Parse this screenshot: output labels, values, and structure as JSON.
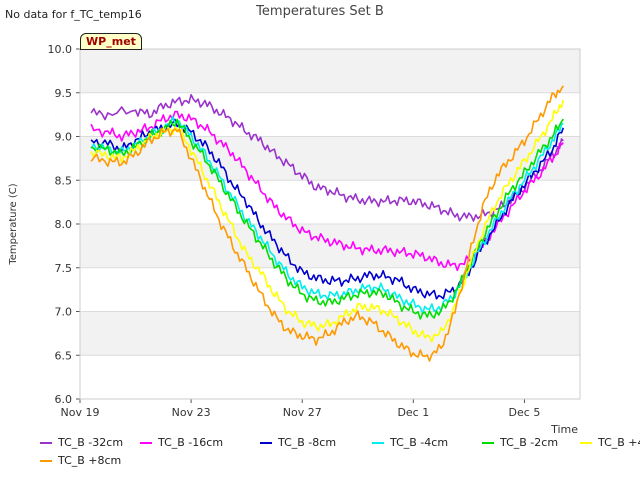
{
  "header": {
    "no_data_text": "No data for f_TC_temp16",
    "badge": "WP_met"
  },
  "chart_data": {
    "type": "line",
    "title": "Temperatures Set B",
    "xlabel": "Time",
    "ylabel": "Temperature (C)",
    "ylim": [
      6.0,
      10.0
    ],
    "xlim": [
      0,
      18
    ],
    "yticks": [
      "6.0",
      "6.5",
      "7.0",
      "7.5",
      "8.0",
      "8.5",
      "9.0",
      "9.5",
      "10.0"
    ],
    "xticks": [
      {
        "x": 0,
        "label": "Nov 19"
      },
      {
        "x": 4,
        "label": "Nov 23"
      },
      {
        "x": 8,
        "label": "Nov 27"
      },
      {
        "x": 12,
        "label": "Dec 1"
      },
      {
        "x": 16,
        "label": "Dec 5"
      }
    ],
    "grid": true,
    "legend_position": "bottom",
    "series": [
      {
        "name": "TC_B -32cm",
        "color": "#9933cc",
        "points": [
          [
            0.4,
            9.27
          ],
          [
            1,
            9.25
          ],
          [
            2,
            9.3
          ],
          [
            2.5,
            9.25
          ],
          [
            3,
            9.35
          ],
          [
            3.5,
            9.4
          ],
          [
            4,
            9.42
          ],
          [
            4.5,
            9.38
          ],
          [
            5,
            9.28
          ],
          [
            5.5,
            9.18
          ],
          [
            6,
            9.05
          ],
          [
            6.5,
            8.95
          ],
          [
            7,
            8.8
          ],
          [
            7.5,
            8.68
          ],
          [
            8,
            8.55
          ],
          [
            8.5,
            8.42
          ],
          [
            9,
            8.38
          ],
          [
            9.5,
            8.32
          ],
          [
            10,
            8.28
          ],
          [
            10.5,
            8.26
          ],
          [
            11,
            8.26
          ],
          [
            11.5,
            8.27
          ],
          [
            12,
            8.26
          ],
          [
            12.5,
            8.22
          ],
          [
            13,
            8.17
          ],
          [
            13.5,
            8.1
          ],
          [
            14,
            8.08
          ],
          [
            14.5,
            8.1
          ],
          [
            15,
            8.16
          ],
          [
            15.5,
            8.28
          ],
          [
            16,
            8.42
          ],
          [
            16.5,
            8.6
          ],
          [
            17,
            8.78
          ],
          [
            17.4,
            8.95
          ]
        ]
      },
      {
        "name": "TC_B -16cm",
        "color": "#ff00ff",
        "points": [
          [
            0.4,
            9.08
          ],
          [
            1,
            9.05
          ],
          [
            1.5,
            9.0
          ],
          [
            2,
            9.05
          ],
          [
            2.5,
            9.1
          ],
          [
            3,
            9.2
          ],
          [
            3.5,
            9.25
          ],
          [
            4,
            9.2
          ],
          [
            4.5,
            9.1
          ],
          [
            5,
            8.95
          ],
          [
            5.5,
            8.8
          ],
          [
            6,
            8.6
          ],
          [
            6.5,
            8.4
          ],
          [
            7,
            8.2
          ],
          [
            7.5,
            8.05
          ],
          [
            8,
            7.92
          ],
          [
            8.5,
            7.85
          ],
          [
            9,
            7.8
          ],
          [
            9.5,
            7.76
          ],
          [
            10,
            7.72
          ],
          [
            10.5,
            7.7
          ],
          [
            11,
            7.7
          ],
          [
            11.5,
            7.68
          ],
          [
            12,
            7.66
          ],
          [
            12.5,
            7.62
          ],
          [
            13,
            7.55
          ],
          [
            13.5,
            7.52
          ],
          [
            14,
            7.58
          ],
          [
            14.5,
            7.75
          ],
          [
            15,
            7.98
          ],
          [
            15.5,
            8.18
          ],
          [
            16,
            8.38
          ],
          [
            16.5,
            8.55
          ],
          [
            17,
            8.75
          ],
          [
            17.4,
            8.93
          ]
        ]
      },
      {
        "name": "TC_B -8cm",
        "color": "#0000cc",
        "points": [
          [
            0.4,
            8.95
          ],
          [
            1,
            8.92
          ],
          [
            1.5,
            8.85
          ],
          [
            2,
            8.95
          ],
          [
            2.5,
            9.05
          ],
          [
            3,
            9.1
          ],
          [
            3.5,
            9.15
          ],
          [
            4,
            9.05
          ],
          [
            4.5,
            8.9
          ],
          [
            5,
            8.7
          ],
          [
            5.5,
            8.45
          ],
          [
            6,
            8.25
          ],
          [
            6.5,
            8.0
          ],
          [
            7,
            7.8
          ],
          [
            7.5,
            7.6
          ],
          [
            8,
            7.45
          ],
          [
            8.5,
            7.38
          ],
          [
            9,
            7.35
          ],
          [
            9.5,
            7.35
          ],
          [
            10,
            7.38
          ],
          [
            10.5,
            7.42
          ],
          [
            11,
            7.4
          ],
          [
            11.5,
            7.35
          ],
          [
            12,
            7.25
          ],
          [
            12.5,
            7.2
          ],
          [
            13,
            7.18
          ],
          [
            13.5,
            7.25
          ],
          [
            14,
            7.45
          ],
          [
            14.5,
            7.75
          ],
          [
            15,
            8.0
          ],
          [
            15.5,
            8.25
          ],
          [
            16,
            8.45
          ],
          [
            16.5,
            8.65
          ],
          [
            17,
            8.85
          ],
          [
            17.4,
            9.1
          ]
        ]
      },
      {
        "name": "TC_B -4cm",
        "color": "#00eeee",
        "points": [
          [
            0.4,
            8.9
          ],
          [
            1,
            8.85
          ],
          [
            1.5,
            8.82
          ],
          [
            2,
            8.9
          ],
          [
            2.5,
            9.0
          ],
          [
            3,
            9.1
          ],
          [
            3.5,
            9.2
          ],
          [
            4,
            9.0
          ],
          [
            4.5,
            8.8
          ],
          [
            5,
            8.55
          ],
          [
            5.5,
            8.3
          ],
          [
            6,
            8.05
          ],
          [
            6.5,
            7.85
          ],
          [
            7,
            7.62
          ],
          [
            7.5,
            7.42
          ],
          [
            8,
            7.28
          ],
          [
            8.5,
            7.2
          ],
          [
            9,
            7.18
          ],
          [
            9.5,
            7.2
          ],
          [
            10,
            7.25
          ],
          [
            10.5,
            7.28
          ],
          [
            11,
            7.25
          ],
          [
            11.5,
            7.15
          ],
          [
            12,
            7.08
          ],
          [
            12.5,
            7.02
          ],
          [
            13,
            7.05
          ],
          [
            13.5,
            7.2
          ],
          [
            14,
            7.48
          ],
          [
            14.5,
            7.78
          ],
          [
            15,
            8.05
          ],
          [
            15.5,
            8.3
          ],
          [
            16,
            8.5
          ],
          [
            16.5,
            8.72
          ],
          [
            17,
            8.95
          ],
          [
            17.4,
            9.15
          ]
        ]
      },
      {
        "name": "TC_B -2cm",
        "color": "#00dd00",
        "points": [
          [
            0.4,
            8.88
          ],
          [
            1,
            8.85
          ],
          [
            1.5,
            8.8
          ],
          [
            2,
            8.88
          ],
          [
            2.5,
            9.0
          ],
          [
            3,
            9.08
          ],
          [
            3.5,
            9.18
          ],
          [
            4,
            8.95
          ],
          [
            4.5,
            8.75
          ],
          [
            5,
            8.5
          ],
          [
            5.5,
            8.25
          ],
          [
            6,
            8.0
          ],
          [
            6.5,
            7.78
          ],
          [
            7,
            7.55
          ],
          [
            7.5,
            7.35
          ],
          [
            8,
            7.2
          ],
          [
            8.5,
            7.12
          ],
          [
            9,
            7.1
          ],
          [
            9.5,
            7.15
          ],
          [
            10,
            7.2
          ],
          [
            10.5,
            7.22
          ],
          [
            11,
            7.2
          ],
          [
            11.5,
            7.08
          ],
          [
            12,
            7.0
          ],
          [
            12.5,
            6.95
          ],
          [
            13,
            7.0
          ],
          [
            13.5,
            7.2
          ],
          [
            14,
            7.52
          ],
          [
            14.5,
            7.85
          ],
          [
            15,
            8.12
          ],
          [
            15.5,
            8.38
          ],
          [
            16,
            8.58
          ],
          [
            16.5,
            8.8
          ],
          [
            17,
            9.0
          ],
          [
            17.4,
            9.2
          ]
        ]
      },
      {
        "name": "TC_B +4cm",
        "color": "#ffff00",
        "points": [
          [
            0.4,
            8.82
          ],
          [
            1,
            8.78
          ],
          [
            1.5,
            8.75
          ],
          [
            2,
            8.85
          ],
          [
            2.5,
            8.98
          ],
          [
            3,
            9.05
          ],
          [
            3.5,
            9.1
          ],
          [
            4,
            8.85
          ],
          [
            4.5,
            8.55
          ],
          [
            5,
            8.25
          ],
          [
            5.5,
            7.95
          ],
          [
            6,
            7.65
          ],
          [
            6.5,
            7.45
          ],
          [
            7,
            7.2
          ],
          [
            7.5,
            7.0
          ],
          [
            8,
            6.88
          ],
          [
            8.5,
            6.83
          ],
          [
            9,
            6.85
          ],
          [
            9.5,
            6.95
          ],
          [
            10,
            7.05
          ],
          [
            10.5,
            7.05
          ],
          [
            11,
            7.0
          ],
          [
            11.5,
            6.9
          ],
          [
            12,
            6.78
          ],
          [
            12.5,
            6.7
          ],
          [
            13,
            6.75
          ],
          [
            13.5,
            7.05
          ],
          [
            14,
            7.5
          ],
          [
            14.5,
            7.92
          ],
          [
            15,
            8.25
          ],
          [
            15.5,
            8.5
          ],
          [
            16,
            8.72
          ],
          [
            16.5,
            8.95
          ],
          [
            17,
            9.2
          ],
          [
            17.4,
            9.42
          ]
        ]
      },
      {
        "name": "TC_B +8cm",
        "color": "#ff9900",
        "points": [
          [
            0.4,
            8.75
          ],
          [
            1,
            8.72
          ],
          [
            1.5,
            8.7
          ],
          [
            2,
            8.8
          ],
          [
            2.5,
            8.95
          ],
          [
            3,
            9.05
          ],
          [
            3.5,
            9.08
          ],
          [
            4,
            8.75
          ],
          [
            4.5,
            8.4
          ],
          [
            5,
            8.05
          ],
          [
            5.5,
            7.75
          ],
          [
            6,
            7.48
          ],
          [
            6.5,
            7.2
          ],
          [
            7,
            6.95
          ],
          [
            7.5,
            6.78
          ],
          [
            8,
            6.72
          ],
          [
            8.5,
            6.68
          ],
          [
            9,
            6.75
          ],
          [
            9.5,
            6.88
          ],
          [
            10,
            6.95
          ],
          [
            10.5,
            6.88
          ],
          [
            11,
            6.75
          ],
          [
            11.5,
            6.62
          ],
          [
            12,
            6.52
          ],
          [
            12.5,
            6.48
          ],
          [
            13,
            6.58
          ],
          [
            13.5,
            7.0
          ],
          [
            14,
            7.62
          ],
          [
            14.5,
            8.2
          ],
          [
            15,
            8.55
          ],
          [
            15.5,
            8.75
          ],
          [
            16,
            8.95
          ],
          [
            16.5,
            9.2
          ],
          [
            17,
            9.45
          ],
          [
            17.4,
            9.58
          ]
        ]
      }
    ]
  }
}
